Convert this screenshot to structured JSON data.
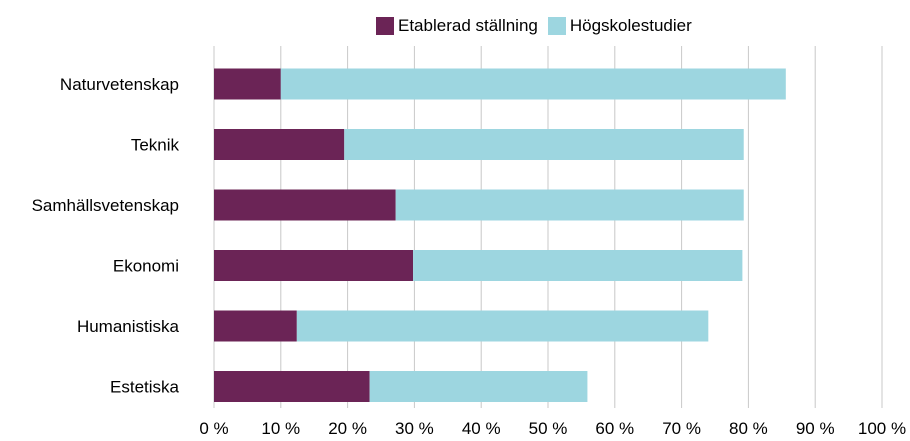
{
  "chart_data": {
    "type": "bar",
    "orientation": "horizontal",
    "stacked": true,
    "categories": [
      "Naturvetenskap",
      "Teknik",
      "Samhällsvetenskap",
      "Ekonomi",
      "Humanistiska",
      "Estetiska"
    ],
    "series": [
      {
        "name": "Etablerad ställning",
        "color": "#6b2456",
        "values": [
          10,
          19.5,
          27.2,
          29.8,
          12.4,
          23.3
        ]
      },
      {
        "name": "Högskolestudier",
        "color": "#9dd6e0",
        "values": [
          75.6,
          59.8,
          52.1,
          49.3,
          61.6,
          32.6
        ]
      }
    ],
    "xlim": [
      0,
      100
    ],
    "xticks": [
      "0 %",
      "10 %",
      "20 %",
      "30 %",
      "40 %",
      "50 %",
      "60 %",
      "70 %",
      "80 %",
      "90 %",
      "100 %"
    ],
    "grid": "vertical",
    "legend_position": "top"
  }
}
